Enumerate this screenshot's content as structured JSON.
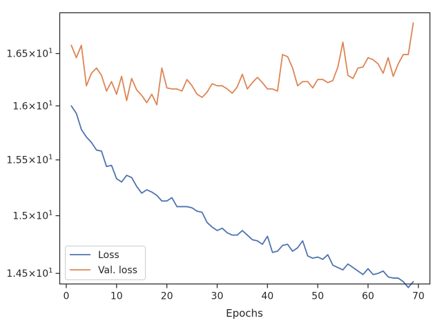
{
  "chart_data": {
    "type": "line",
    "title": "",
    "xlabel": "Epochs",
    "ylabel": "",
    "xlim": [
      -1.3,
      72.3
    ],
    "ylim": [
      14.41,
      16.9
    ],
    "log_scale_y": true,
    "grid": false,
    "legend_position": "lower-left",
    "x_ticks": [
      0,
      10,
      20,
      30,
      40,
      50,
      60,
      70
    ],
    "x_tick_labels": [
      "0",
      "10",
      "20",
      "30",
      "40",
      "50",
      "60",
      "70"
    ],
    "y_ticks": [
      14.5,
      15.0,
      15.5,
      16.0,
      16.5
    ],
    "y_tick_labels": [
      {
        "mantissa": "1.45",
        "times": "×",
        "base": "10",
        "exp": "1"
      },
      {
        "mantissa": "1.5",
        "times": "×",
        "base": "10",
        "exp": "1"
      },
      {
        "mantissa": "1.55",
        "times": "×",
        "base": "10",
        "exp": "1"
      },
      {
        "mantissa": "1.6",
        "times": "×",
        "base": "10",
        "exp": "1"
      },
      {
        "mantissa": "1.65",
        "times": "×",
        "base": "10",
        "exp": "1"
      }
    ],
    "x": [
      1,
      2,
      3,
      4,
      5,
      6,
      7,
      8,
      9,
      10,
      11,
      12,
      13,
      14,
      15,
      16,
      17,
      18,
      19,
      20,
      21,
      22,
      23,
      24,
      25,
      26,
      27,
      28,
      29,
      30,
      31,
      32,
      33,
      34,
      35,
      36,
      37,
      38,
      39,
      40,
      41,
      42,
      43,
      44,
      45,
      46,
      47,
      48,
      49,
      50,
      51,
      52,
      53,
      54,
      55,
      56,
      57,
      58,
      59,
      60,
      61,
      62,
      63,
      64,
      65,
      66,
      67,
      68,
      69
    ],
    "series": [
      {
        "name": "Loss",
        "color": "#4c72b0",
        "values": [
          16.0,
          15.93,
          15.78,
          15.71,
          15.66,
          15.59,
          15.58,
          15.44,
          15.45,
          15.33,
          15.3,
          15.36,
          15.34,
          15.26,
          15.2,
          15.23,
          15.21,
          15.18,
          15.13,
          15.13,
          15.16,
          15.08,
          15.08,
          15.08,
          15.07,
          15.04,
          15.03,
          14.94,
          14.9,
          14.87,
          14.89,
          14.85,
          14.83,
          14.83,
          14.87,
          14.83,
          14.79,
          14.78,
          14.75,
          14.82,
          14.68,
          14.69,
          14.74,
          14.75,
          14.69,
          14.72,
          14.78,
          14.65,
          14.63,
          14.64,
          14.62,
          14.66,
          14.57,
          14.55,
          14.53,
          14.58,
          14.55,
          14.52,
          14.49,
          14.54,
          14.49,
          14.5,
          14.52,
          14.47,
          14.46,
          14.46,
          14.43,
          14.38,
          14.43
        ]
      },
      {
        "name": "Val. loss",
        "color": "#dd8452",
        "values": [
          16.58,
          16.46,
          16.58,
          16.19,
          16.31,
          16.36,
          16.29,
          16.14,
          16.23,
          16.11,
          16.28,
          16.05,
          16.26,
          16.15,
          16.1,
          16.03,
          16.11,
          16.01,
          16.36,
          16.17,
          16.16,
          16.16,
          16.14,
          16.25,
          16.19,
          16.11,
          16.08,
          16.13,
          16.21,
          16.19,
          16.19,
          16.16,
          16.12,
          16.18,
          16.3,
          16.16,
          16.22,
          16.27,
          16.22,
          16.16,
          16.16,
          16.14,
          16.49,
          16.47,
          16.36,
          16.19,
          16.23,
          16.23,
          16.17,
          16.25,
          16.25,
          16.22,
          16.24,
          16.37,
          16.61,
          16.29,
          16.26,
          16.36,
          16.37,
          16.46,
          16.44,
          16.4,
          16.31,
          16.46,
          16.28,
          16.4,
          16.49,
          16.49,
          16.8
        ]
      }
    ]
  }
}
